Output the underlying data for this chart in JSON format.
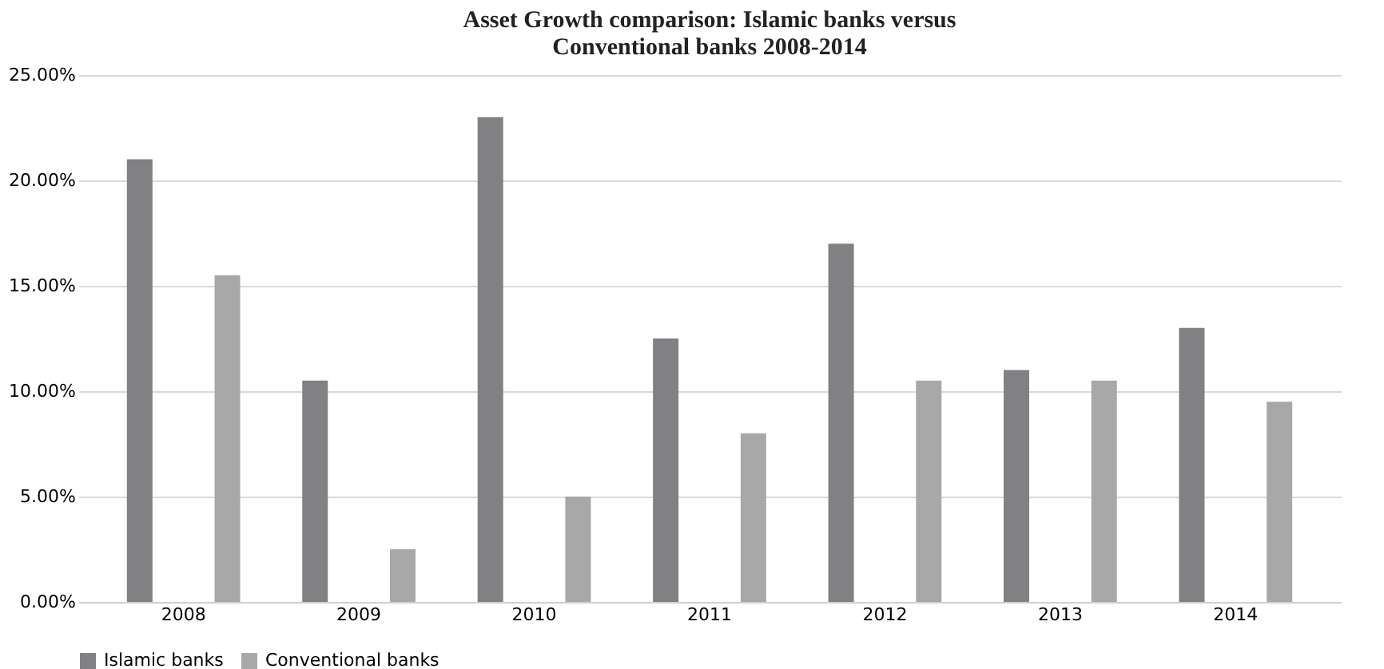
{
  "chart_data": {
    "type": "bar",
    "title": "Asset Growth comparison: Islamic banks versus\nConventional banks 2008-2014",
    "categories": [
      "2008",
      "2009",
      "2010",
      "2011",
      "2012",
      "2013",
      "2014"
    ],
    "series": [
      {
        "name": "Islamic banks",
        "color": "#818184",
        "values": [
          21,
          10.5,
          23,
          12.5,
          17,
          11,
          13
        ]
      },
      {
        "name": "Conventional banks",
        "color": "#a8a8a8",
        "values": [
          15.5,
          2.5,
          5,
          8,
          10.5,
          10.5,
          9.5
        ]
      }
    ],
    "ylim": [
      0,
      25
    ],
    "yticks": [
      {
        "value": 0,
        "label": "0.00%"
      },
      {
        "value": 5,
        "label": "5.00%"
      },
      {
        "value": 10,
        "label": "10.00%"
      },
      {
        "value": 15,
        "label": "15.00%"
      },
      {
        "value": 20,
        "label": "20.00%"
      },
      {
        "value": 25,
        "label": "25.00%"
      }
    ],
    "grid": "y",
    "legend": "bottom"
  }
}
